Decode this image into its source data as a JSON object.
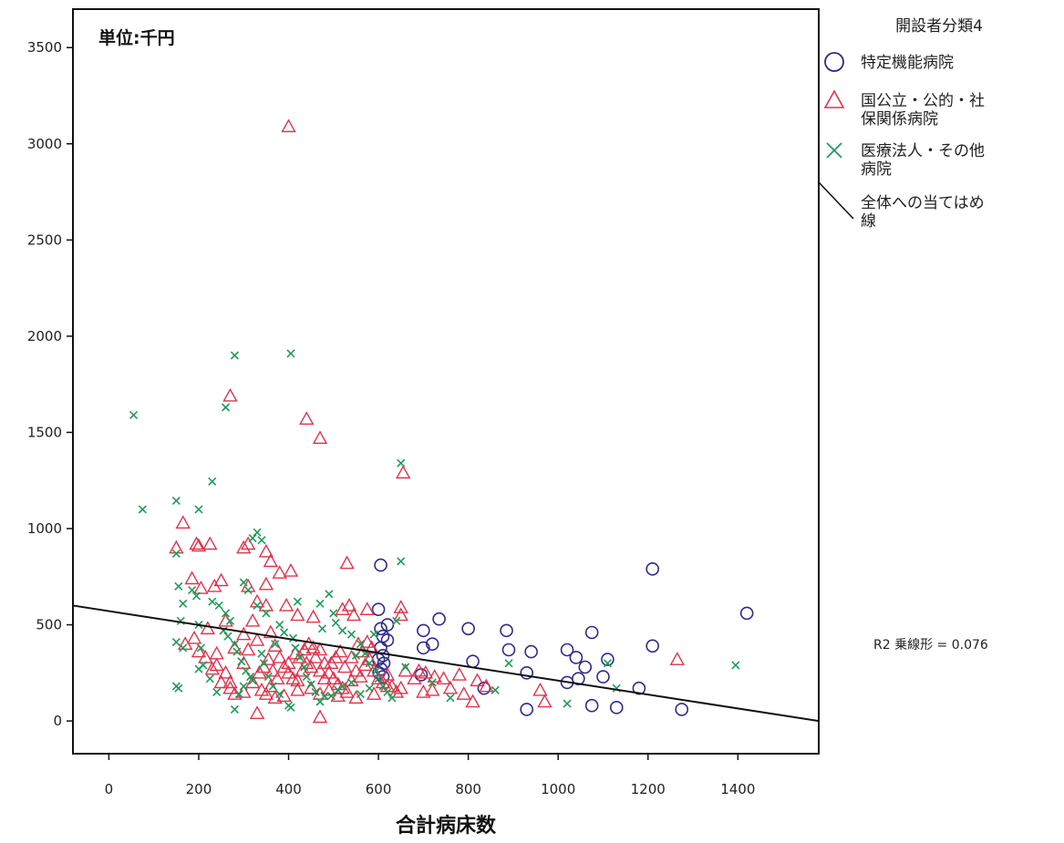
{
  "chart_data": {
    "type": "scatter",
    "unit_label": "単位:千円",
    "xlabel": "合計病床数",
    "ylabel": "",
    "xlim": [
      -80,
      1580
    ],
    "ylim": [
      -170,
      3700
    ],
    "x_ticks": [
      0,
      200,
      400,
      600,
      800,
      1000,
      1200,
      1400
    ],
    "y_ticks": [
      0,
      500,
      1000,
      1500,
      2000,
      2500,
      3000,
      3500
    ],
    "grid": false,
    "legend": {
      "placement": "right",
      "title": "開設者分類4",
      "entries": [
        {
          "label": "特定機能病院",
          "marker": "circle",
          "color": "#2e2a8c"
        },
        {
          "label": "国公立・公的・社保関係病院",
          "marker": "triangle",
          "color": "#e0344f"
        },
        {
          "label": "医療法人・その他病院",
          "marker": "cross",
          "color": "#1f9b5a"
        },
        {
          "label": "全体への当てはめ線",
          "marker": "line",
          "color": "#111111"
        }
      ]
    },
    "fit_line": {
      "label": "全体への当てはめ線",
      "x": [
        -80,
        1580
      ],
      "y": [
        600,
        0
      ],
      "color": "#111111"
    },
    "annotations": [
      {
        "text": "R2 乗線形 = 0.076"
      }
    ],
    "series": [
      {
        "name": "特定機能病院",
        "marker": "circle",
        "color": "#2e2a8c",
        "points": [
          [
            605,
            810
          ],
          [
            600,
            580
          ],
          [
            620,
            500
          ],
          [
            605,
            480
          ],
          [
            610,
            440
          ],
          [
            620,
            420
          ],
          [
            605,
            380
          ],
          [
            610,
            340
          ],
          [
            600,
            320
          ],
          [
            612,
            300
          ],
          [
            606,
            270
          ],
          [
            601,
            250
          ],
          [
            610,
            230
          ],
          [
            700,
            470
          ],
          [
            735,
            530
          ],
          [
            800,
            480
          ],
          [
            885,
            470
          ],
          [
            700,
            380
          ],
          [
            720,
            400
          ],
          [
            810,
            310
          ],
          [
            890,
            370
          ],
          [
            940,
            360
          ],
          [
            1075,
            460
          ],
          [
            1020,
            370
          ],
          [
            1210,
            790
          ],
          [
            1210,
            390
          ],
          [
            1420,
            560
          ],
          [
            1040,
            330
          ],
          [
            1060,
            280
          ],
          [
            1100,
            230
          ],
          [
            1020,
            200
          ],
          [
            1045,
            220
          ],
          [
            1110,
            320
          ],
          [
            1180,
            170
          ],
          [
            930,
            250
          ],
          [
            835,
            170
          ],
          [
            695,
            240
          ],
          [
            930,
            60
          ],
          [
            1075,
            80
          ],
          [
            1130,
            70
          ],
          [
            1275,
            60
          ]
        ]
      },
      {
        "name": "国公立・公的・社保関係病院",
        "marker": "triangle",
        "color": "#e0344f",
        "points": [
          [
            400,
            3090
          ],
          [
            270,
            1690
          ],
          [
            440,
            1570
          ],
          [
            470,
            1470
          ],
          [
            655,
            1290
          ],
          [
            165,
            1030
          ],
          [
            150,
            900
          ],
          [
            195,
            920
          ],
          [
            200,
            910
          ],
          [
            225,
            920
          ],
          [
            185,
            740
          ],
          [
            205,
            690
          ],
          [
            235,
            700
          ],
          [
            250,
            730
          ],
          [
            310,
            920
          ],
          [
            300,
            900
          ],
          [
            350,
            880
          ],
          [
            360,
            830
          ],
          [
            380,
            770
          ],
          [
            405,
            780
          ],
          [
            350,
            710
          ],
          [
            310,
            700
          ],
          [
            330,
            620
          ],
          [
            350,
            600
          ],
          [
            395,
            600
          ],
          [
            420,
            550
          ],
          [
            455,
            540
          ],
          [
            530,
            820
          ],
          [
            520,
            580
          ],
          [
            535,
            600
          ],
          [
            545,
            550
          ],
          [
            575,
            580
          ],
          [
            650,
            590
          ],
          [
            650,
            550
          ],
          [
            690,
            260
          ],
          [
            705,
            250
          ],
          [
            725,
            230
          ],
          [
            745,
            220
          ],
          [
            790,
            140
          ],
          [
            810,
            100
          ],
          [
            960,
            160
          ],
          [
            1265,
            320
          ],
          [
            970,
            100
          ],
          [
            620,
            180
          ],
          [
            590,
            140
          ],
          [
            550,
            120
          ],
          [
            470,
            20
          ],
          [
            330,
            40
          ],
          [
            250,
            200
          ],
          [
            240,
            290
          ],
          [
            200,
            360
          ],
          [
            170,
            400
          ],
          [
            190,
            430
          ],
          [
            220,
            480
          ],
          [
            260,
            520
          ],
          [
            300,
            450
          ],
          [
            320,
            520
          ],
          [
            280,
            380
          ],
          [
            240,
            350
          ],
          [
            215,
            330
          ],
          [
            230,
            270
          ],
          [
            270,
            200
          ],
          [
            300,
            300
          ],
          [
            310,
            370
          ],
          [
            330,
            420
          ],
          [
            360,
            460
          ],
          [
            370,
            390
          ],
          [
            380,
            330
          ],
          [
            390,
            280
          ],
          [
            400,
            250
          ],
          [
            410,
            220
          ],
          [
            420,
            210
          ],
          [
            430,
            260
          ],
          [
            440,
            300
          ],
          [
            450,
            280
          ],
          [
            460,
            330
          ],
          [
            470,
            370
          ],
          [
            480,
            300
          ],
          [
            490,
            250
          ],
          [
            500,
            220
          ],
          [
            510,
            190
          ],
          [
            520,
            170
          ],
          [
            530,
            150
          ],
          [
            540,
            210
          ],
          [
            550,
            260
          ],
          [
            560,
            230
          ],
          [
            570,
            290
          ],
          [
            580,
            320
          ],
          [
            590,
            260
          ],
          [
            600,
            220
          ],
          [
            610,
            200
          ],
          [
            620,
            240
          ],
          [
            630,
            180
          ],
          [
            640,
            150
          ],
          [
            650,
            170
          ],
          [
            660,
            260
          ],
          [
            680,
            220
          ],
          [
            700,
            150
          ],
          [
            720,
            160
          ],
          [
            760,
            170
          ],
          [
            780,
            240
          ],
          [
            820,
            210
          ],
          [
            840,
            180
          ],
          [
            360,
            180
          ],
          [
            350,
            140
          ],
          [
            340,
            160
          ],
          [
            300,
            150
          ],
          [
            280,
            140
          ],
          [
            270,
            170
          ],
          [
            260,
            250
          ],
          [
            450,
            170
          ],
          [
            470,
            140
          ],
          [
            490,
            160
          ],
          [
            510,
            130
          ],
          [
            420,
            160
          ],
          [
            390,
            130
          ],
          [
            370,
            120
          ],
          [
            320,
            200
          ],
          [
            335,
            250
          ],
          [
            345,
            280
          ],
          [
            355,
            320
          ],
          [
            365,
            260
          ],
          [
            375,
            220
          ],
          [
            400,
            300
          ],
          [
            415,
            350
          ],
          [
            425,
            330
          ],
          [
            435,
            370
          ],
          [
            445,
            400
          ],
          [
            455,
            380
          ],
          [
            470,
            260
          ],
          [
            480,
            220
          ],
          [
            495,
            300
          ],
          [
            505,
            330
          ],
          [
            515,
            360
          ],
          [
            525,
            280
          ],
          [
            540,
            330
          ],
          [
            555,
            400
          ],
          [
            565,
            360
          ],
          [
            575,
            410
          ],
          [
            585,
            380
          ]
        ]
      },
      {
        "name": "医療法人・その他病院",
        "marker": "cross",
        "color": "#1f9b5a",
        "points": [
          [
            55,
            1590
          ],
          [
            75,
            1100
          ],
          [
            150,
            1145
          ],
          [
            200,
            1100
          ],
          [
            230,
            1245
          ],
          [
            260,
            1630
          ],
          [
            280,
            1900
          ],
          [
            405,
            1910
          ],
          [
            650,
            1340
          ],
          [
            650,
            830
          ],
          [
            150,
            870
          ],
          [
            155,
            700
          ],
          [
            165,
            610
          ],
          [
            160,
            520
          ],
          [
            150,
            410
          ],
          [
            165,
            380
          ],
          [
            150,
            180
          ],
          [
            155,
            170
          ],
          [
            185,
            680
          ],
          [
            195,
            650
          ],
          [
            200,
            500
          ],
          [
            205,
            380
          ],
          [
            210,
            290
          ],
          [
            200,
            270
          ],
          [
            230,
            620
          ],
          [
            245,
            600
          ],
          [
            260,
            560
          ],
          [
            270,
            520
          ],
          [
            255,
            470
          ],
          [
            265,
            440
          ],
          [
            280,
            400
          ],
          [
            285,
            360
          ],
          [
            295,
            310
          ],
          [
            305,
            260
          ],
          [
            315,
            230
          ],
          [
            320,
            210
          ],
          [
            300,
            180
          ],
          [
            290,
            140
          ],
          [
            280,
            60
          ],
          [
            240,
            150
          ],
          [
            225,
            220
          ],
          [
            330,
            980
          ],
          [
            320,
            950
          ],
          [
            340,
            940
          ],
          [
            300,
            720
          ],
          [
            310,
            680
          ],
          [
            330,
            600
          ],
          [
            350,
            560
          ],
          [
            380,
            500
          ],
          [
            390,
            460
          ],
          [
            410,
            430
          ],
          [
            415,
            380
          ],
          [
            425,
            330
          ],
          [
            435,
            280
          ],
          [
            440,
            230
          ],
          [
            450,
            190
          ],
          [
            460,
            150
          ],
          [
            470,
            100
          ],
          [
            480,
            130
          ],
          [
            400,
            80
          ],
          [
            405,
            70
          ],
          [
            380,
            140
          ],
          [
            365,
            180
          ],
          [
            355,
            230
          ],
          [
            345,
            300
          ],
          [
            340,
            350
          ],
          [
            370,
            400
          ],
          [
            500,
            560
          ],
          [
            505,
            510
          ],
          [
            520,
            470
          ],
          [
            540,
            450
          ],
          [
            560,
            400
          ],
          [
            570,
            350
          ],
          [
            580,
            300
          ],
          [
            595,
            260
          ],
          [
            600,
            220
          ],
          [
            610,
            180
          ],
          [
            620,
            150
          ],
          [
            630,
            120
          ],
          [
            540,
            200
          ],
          [
            520,
            180
          ],
          [
            510,
            160
          ],
          [
            495,
            130
          ],
          [
            560,
            140
          ],
          [
            580,
            170
          ],
          [
            490,
            660
          ],
          [
            470,
            610
          ],
          [
            475,
            480
          ],
          [
            420,
            620
          ],
          [
            550,
            340
          ],
          [
            590,
            450
          ],
          [
            640,
            520
          ],
          [
            660,
            280
          ],
          [
            720,
            200
          ],
          [
            760,
            120
          ],
          [
            860,
            160
          ],
          [
            890,
            300
          ],
          [
            1020,
            90
          ],
          [
            1110,
            300
          ],
          [
            1130,
            170
          ],
          [
            1395,
            290
          ]
        ]
      }
    ]
  }
}
